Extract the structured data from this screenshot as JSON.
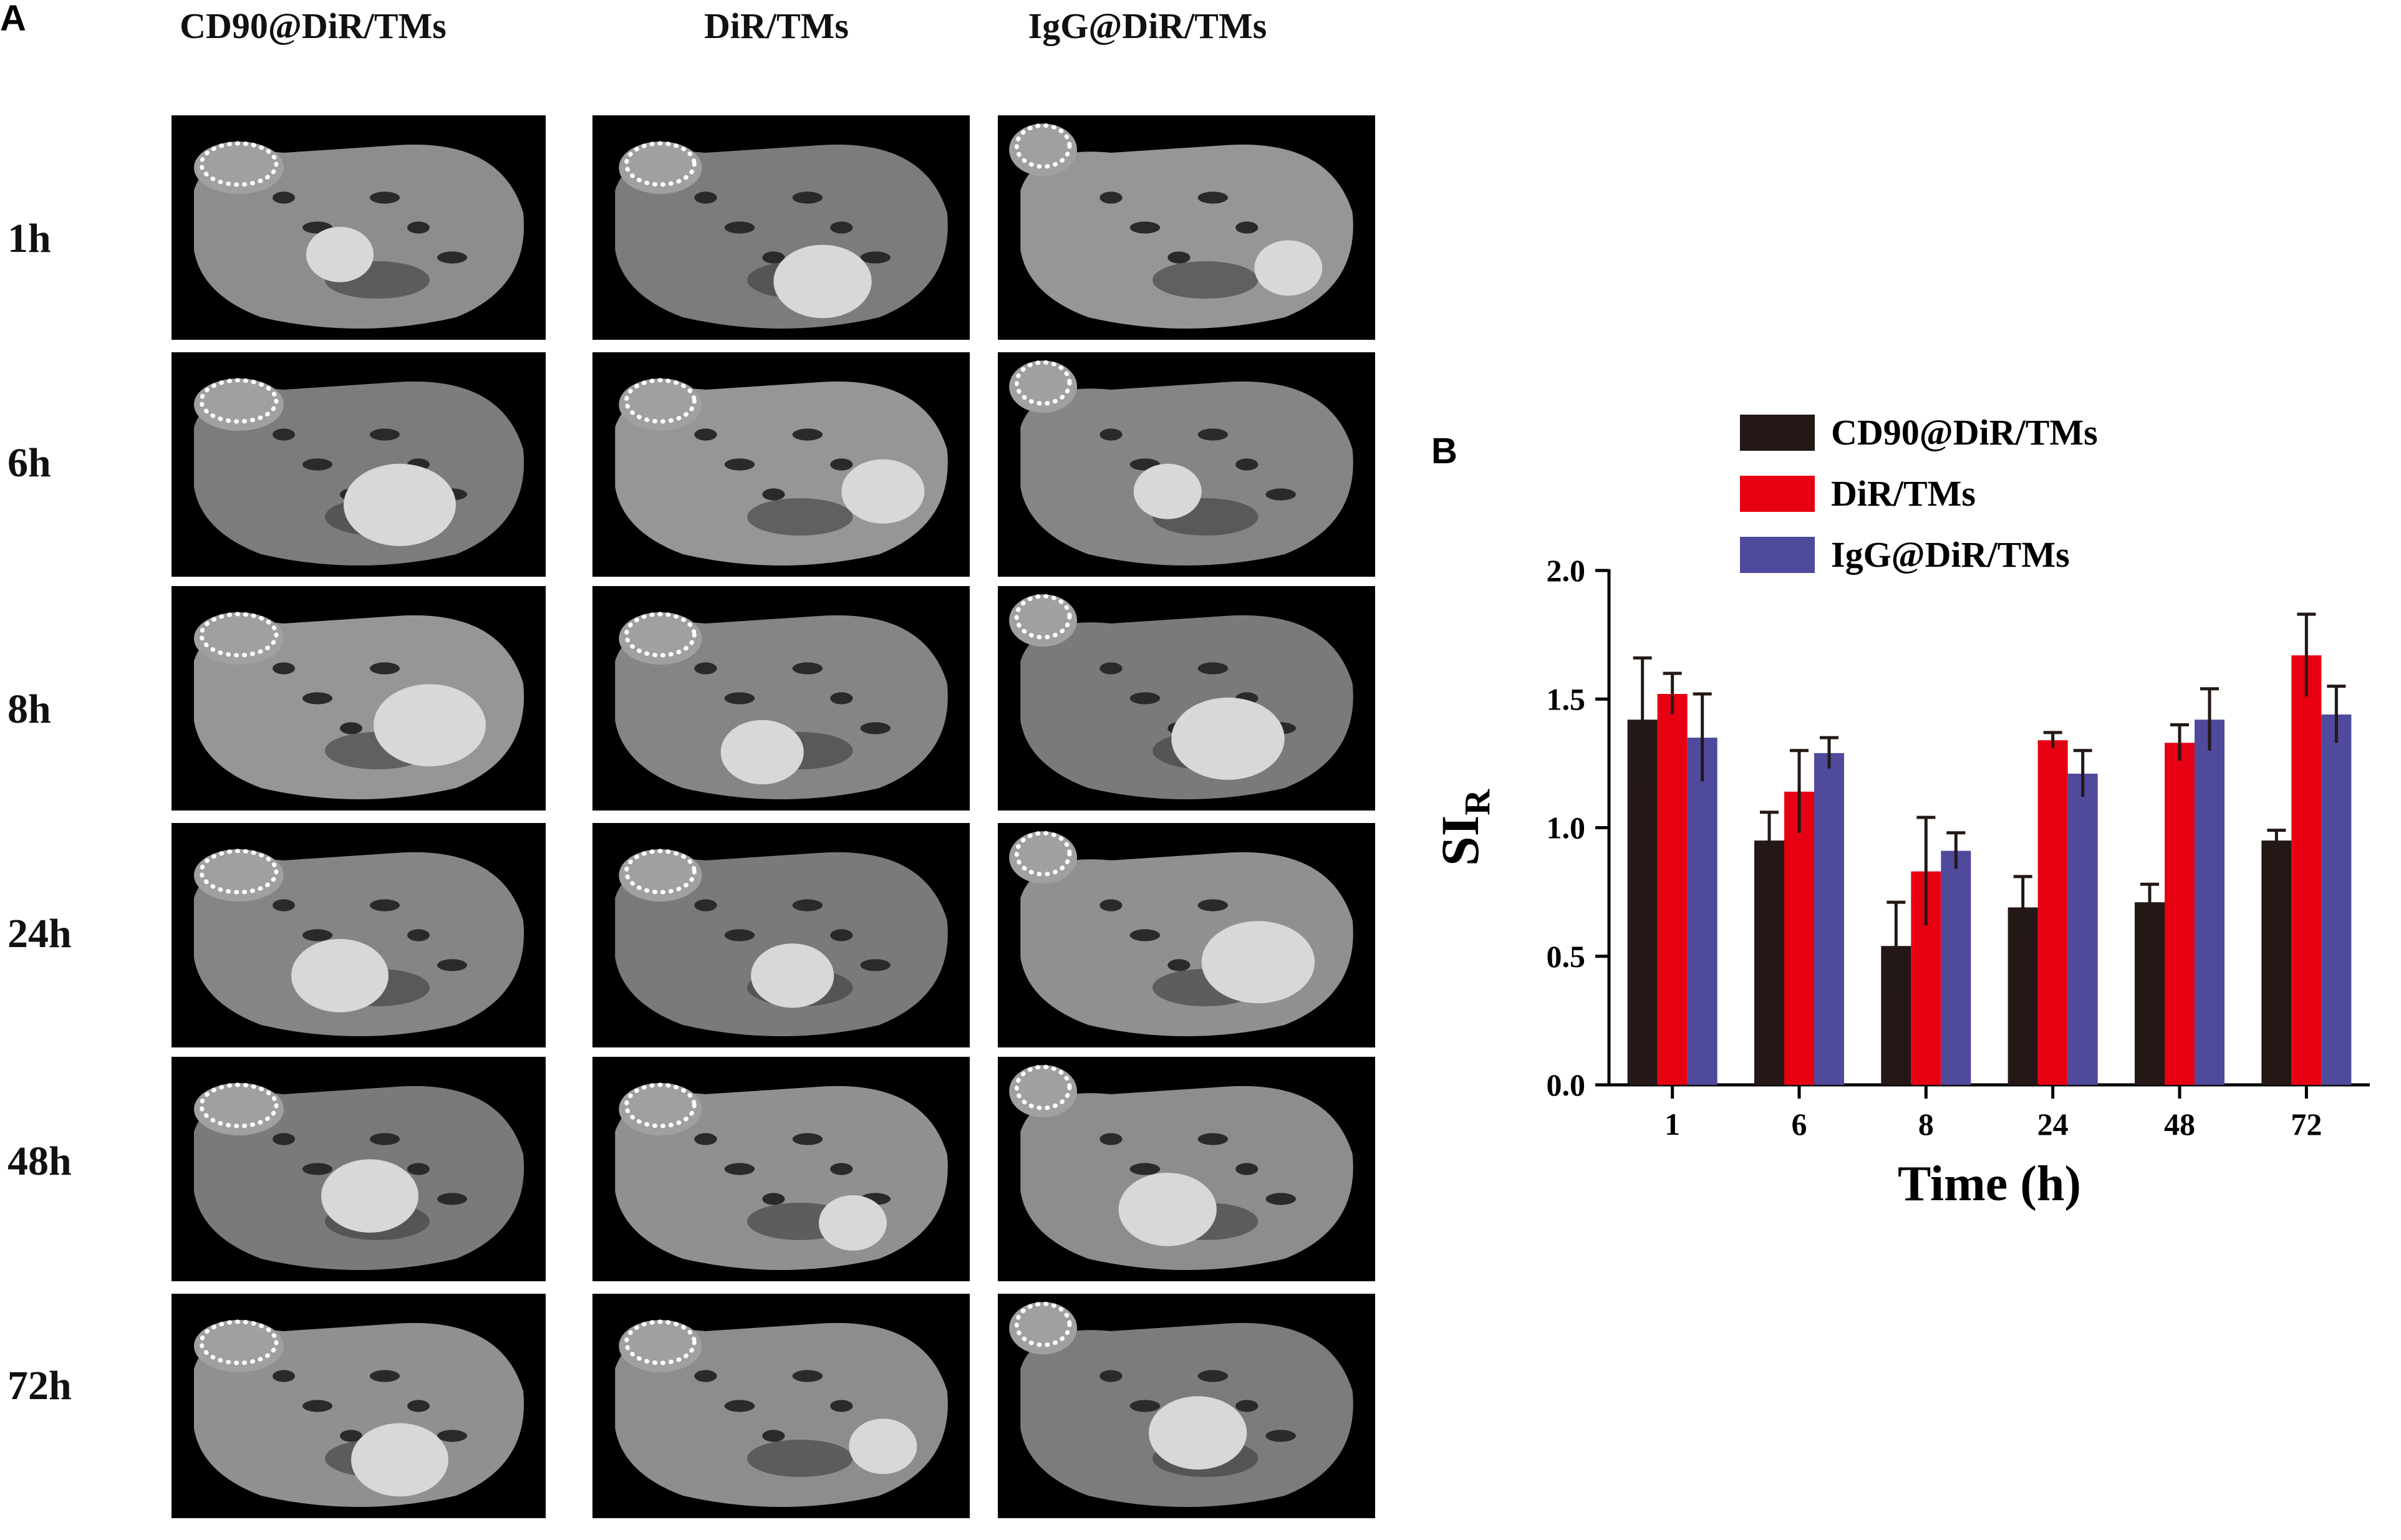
{
  "panel_a": {
    "letter": "A",
    "columns": [
      "CD90@DiR/TMs",
      "DiR/TMs",
      "IgG@DiR/TMs"
    ],
    "rows": [
      "1h",
      "6h",
      "8h",
      "24h",
      "48h",
      "72h"
    ],
    "image_description_names": [
      "mri-scan"
    ]
  },
  "panel_b": {
    "letter": "B"
  },
  "chart_data": {
    "type": "bar",
    "categories": [
      "1",
      "6",
      "8",
      "24",
      "48",
      "72"
    ],
    "xlabel": "Time (h)",
    "ylabel_main": "SI",
    "ylabel_sub": "R",
    "ylim": [
      0,
      2.0
    ],
    "yticks": [
      "0.0",
      "0.5",
      "1.0",
      "1.5",
      "2.0"
    ],
    "legend_position": "top",
    "series": [
      {
        "name": "CD90@DiR/TMs",
        "color": "#231815",
        "values": [
          1.42,
          0.95,
          0.54,
          0.69,
          0.71,
          0.95
        ],
        "errors": [
          0.24,
          0.11,
          0.17,
          0.12,
          0.07,
          0.04
        ]
      },
      {
        "name": "DiR/TMs",
        "color": "#e60012",
        "values": [
          1.52,
          1.14,
          0.83,
          1.34,
          1.33,
          1.67
        ],
        "errors": [
          0.08,
          0.16,
          0.21,
          0.03,
          0.07,
          0.16
        ]
      },
      {
        "name": "IgG@DiR/TMs",
        "color": "#4f4a9c",
        "values": [
          1.35,
          1.29,
          0.91,
          1.21,
          1.42,
          1.44
        ],
        "errors": [
          0.17,
          0.06,
          0.07,
          0.09,
          0.12,
          0.11
        ]
      }
    ]
  }
}
